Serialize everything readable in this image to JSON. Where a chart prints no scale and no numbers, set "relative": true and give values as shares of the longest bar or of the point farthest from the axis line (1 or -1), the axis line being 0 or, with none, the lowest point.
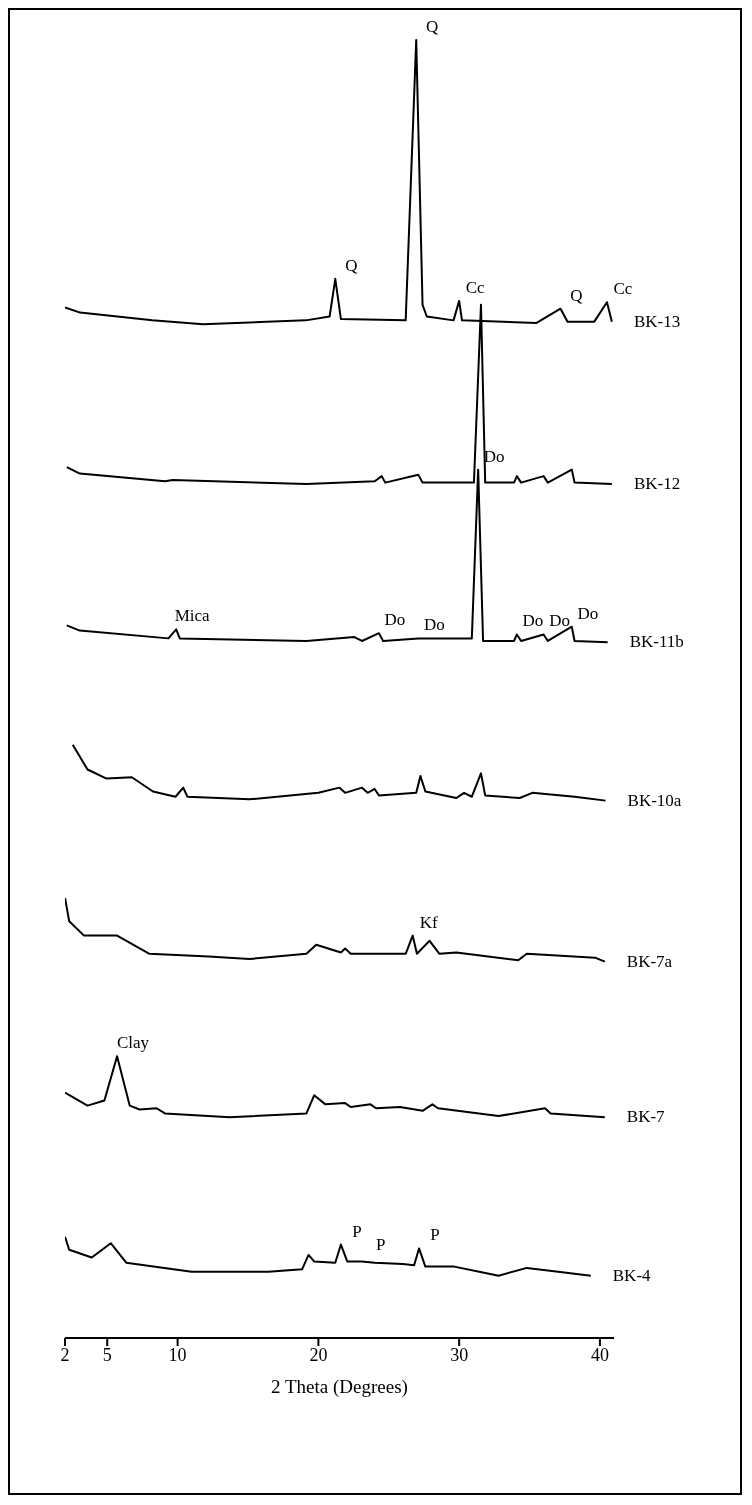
{
  "chart_data": {
    "type": "line",
    "relative": true,
    "xlabel": "2 Theta (Degrees)",
    "xlim": [
      2,
      41
    ],
    "xticks": [
      2,
      5,
      10,
      20,
      30,
      40
    ],
    "series": [
      {
        "name": "BK-13",
        "color": "#000000",
        "x": [
          2.0,
          3.07,
          8.2,
          11.8,
          19.1,
          20.8,
          21.2,
          21.6,
          26.2,
          26.95,
          27.4,
          27.7,
          29.6,
          30.0,
          30.2,
          35.5,
          37.2,
          37.7,
          39.6,
          40.5,
          40.85
        ],
        "values": [
          0.794,
          0.79,
          0.784,
          0.781,
          0.784,
          0.787,
          0.816,
          0.785,
          0.784,
          1.0,
          0.796,
          0.787,
          0.784,
          0.799,
          0.784,
          0.782,
          0.793,
          0.783,
          0.783,
          0.798,
          0.783
        ]
      },
      {
        "name": "BK-12",
        "color": "#000000",
        "x": [
          2.13,
          3.05,
          9.1,
          9.65,
          19.15,
          24.0,
          24.5,
          24.75,
          27.1,
          27.4,
          30.9,
          31.05,
          31.55,
          31.85,
          33.9,
          34.1,
          34.4,
          36.0,
          36.3,
          38.0,
          38.2,
          40.85
        ],
        "values": [
          0.671,
          0.666,
          0.66,
          0.661,
          0.658,
          0.66,
          0.664,
          0.659,
          0.665,
          0.659,
          0.659,
          0.659,
          0.796,
          0.659,
          0.659,
          0.664,
          0.659,
          0.664,
          0.659,
          0.669,
          0.659,
          0.658
        ]
      },
      {
        "name": "BK-11b",
        "color": "#000000",
        "x": [
          2.13,
          3.05,
          9.35,
          9.9,
          10.15,
          19.15,
          22.55,
          23.1,
          24.3,
          24.6,
          27.1,
          30.9,
          31.35,
          31.7,
          33.9,
          34.1,
          34.4,
          36.0,
          36.3,
          38.0,
          38.2,
          40.55
        ],
        "values": [
          0.549,
          0.545,
          0.539,
          0.546,
          0.539,
          0.537,
          0.54,
          0.537,
          0.543,
          0.537,
          0.539,
          0.539,
          0.669,
          0.537,
          0.537,
          0.542,
          0.537,
          0.542,
          0.537,
          0.548,
          0.537,
          0.536
        ]
      },
      {
        "name": "BK-10a",
        "color": "#000000",
        "x": [
          2.55,
          3.6,
          4.95,
          6.75,
          8.25,
          9.85,
          10.4,
          10.7,
          15.1,
          20.0,
          21.5,
          21.9,
          23.1,
          23.5,
          24.0,
          24.3,
          26.95,
          27.25,
          27.6,
          29.8,
          30.35,
          30.9,
          31.55,
          31.85,
          34.3,
          35.2,
          38.2,
          40.4
        ],
        "values": [
          0.457,
          0.438,
          0.431,
          0.432,
          0.421,
          0.417,
          0.424,
          0.417,
          0.415,
          0.42,
          0.424,
          0.42,
          0.424,
          0.42,
          0.423,
          0.418,
          0.42,
          0.433,
          0.421,
          0.416,
          0.42,
          0.417,
          0.435,
          0.418,
          0.416,
          0.42,
          0.417,
          0.414
        ]
      },
      {
        "name": "BK-7a",
        "color": "#000000",
        "x": [
          2.0,
          2.3,
          3.35,
          5.7,
          8.0,
          12.2,
          15.1,
          19.15,
          19.85,
          21.6,
          21.9,
          22.3,
          26.2,
          26.7,
          27.0,
          27.9,
          28.6,
          29.8,
          34.2,
          34.8,
          39.65,
          40.35
        ],
        "values": [
          0.339,
          0.321,
          0.31,
          0.31,
          0.296,
          0.294,
          0.292,
          0.296,
          0.303,
          0.297,
          0.3,
          0.296,
          0.296,
          0.31,
          0.296,
          0.306,
          0.296,
          0.297,
          0.291,
          0.296,
          0.293,
          0.29
        ]
      },
      {
        "name": "BK-7",
        "color": "#000000",
        "x": [
          2.0,
          3.6,
          4.8,
          5.7,
          6.6,
          7.3,
          8.5,
          9.1,
          13.7,
          19.15,
          19.7,
          20.5,
          21.9,
          22.3,
          23.7,
          24.1,
          25.8,
          27.4,
          28.1,
          28.5,
          32.8,
          36.1,
          36.5,
          40.35
        ],
        "values": [
          0.189,
          0.179,
          0.183,
          0.217,
          0.179,
          0.176,
          0.177,
          0.173,
          0.17,
          0.173,
          0.187,
          0.18,
          0.181,
          0.178,
          0.18,
          0.177,
          0.178,
          0.175,
          0.18,
          0.177,
          0.171,
          0.177,
          0.173,
          0.17
        ]
      },
      {
        "name": "BK-4",
        "color": "#000000",
        "x": [
          2.0,
          2.3,
          3.9,
          5.25,
          6.35,
          11.0,
          16.45,
          18.85,
          19.3,
          19.7,
          21.2,
          21.6,
          22.05,
          23.05,
          24.0,
          26.0,
          26.8,
          27.15,
          27.6,
          29.65,
          32.8,
          34.8,
          39.35
        ],
        "values": [
          0.078,
          0.068,
          0.062,
          0.073,
          0.058,
          0.051,
          0.051,
          0.053,
          0.064,
          0.059,
          0.058,
          0.072,
          0.059,
          0.059,
          0.058,
          0.057,
          0.056,
          0.069,
          0.055,
          0.055,
          0.048,
          0.054,
          0.048
        ]
      }
    ],
    "annotations": [
      {
        "text": "Q",
        "x": 21.2,
        "y": 0.816
      },
      {
        "text": "Q",
        "x": 26.95,
        "y": 1.0
      },
      {
        "text": "Cc",
        "x": 30.0,
        "y": 0.799
      },
      {
        "text": "Q",
        "x": 37.2,
        "y": 0.793
      },
      {
        "text": "Cc",
        "x": 40.5,
        "y": 0.798
      },
      {
        "text": "Do",
        "x": 31.35,
        "y": 0.669
      },
      {
        "text": "Mica",
        "x": 9.9,
        "y": 0.546
      },
      {
        "text": "Do",
        "x": 24.3,
        "y": 0.543
      },
      {
        "text": "Do",
        "x": 27.1,
        "y": 0.539
      },
      {
        "text": "Do",
        "x": 34.1,
        "y": 0.542
      },
      {
        "text": "Do",
        "x": 36.0,
        "y": 0.542
      },
      {
        "text": "Do",
        "x": 38.0,
        "y": 0.548
      },
      {
        "text": "Kf",
        "x": 26.7,
        "y": 0.31
      },
      {
        "text": "Clay",
        "x": 5.7,
        "y": 0.217
      },
      {
        "text": "P",
        "x": 21.6,
        "y": 0.072
      },
      {
        "text": "P",
        "x": 23.3,
        "y": 0.062
      },
      {
        "text": "P",
        "x": 27.15,
        "y": 0.069
      }
    ]
  }
}
